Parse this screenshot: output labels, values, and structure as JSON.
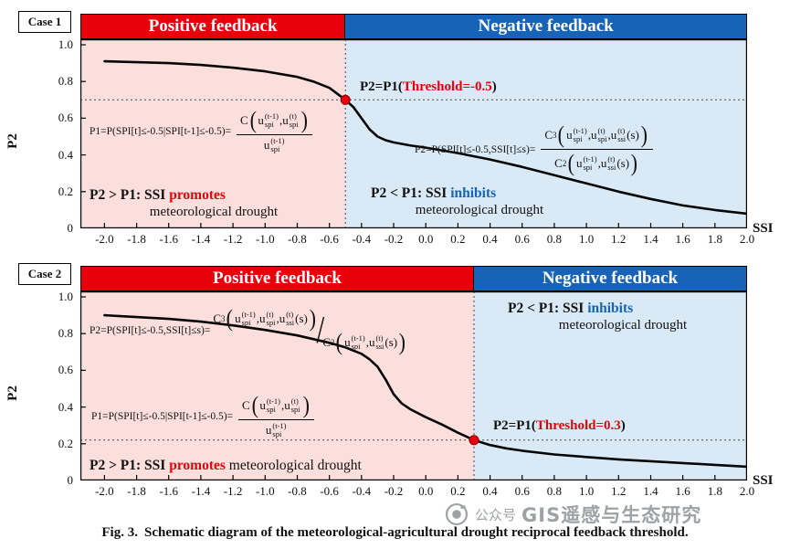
{
  "colors": {
    "positive_red": "#e8000b",
    "negative_blue": "#1663b8",
    "pink_bg": "#fbdfdd",
    "blue_bg": "#d9eaf6",
    "curve": "#060606",
    "dot": "#e8000b"
  },
  "caption": {
    "prefix": "Fig. 3.",
    "text": "Schematic diagram of the meteorological-agricultural drought reciprocal feedback threshold."
  },
  "watermark": {
    "prefix": "公众号",
    "name": "GIS遥感与生态研究"
  },
  "chart_data": [
    {
      "type": "line",
      "case_label": "Case 1",
      "headers": {
        "positive": "Positive feedback",
        "negative": "Negative feedback"
      },
      "xlabel": "SSI",
      "ylabel": "P2",
      "xlim": [
        -2.0,
        2.0
      ],
      "ylim": [
        0,
        1.0
      ],
      "x_ticks": [
        "-2.0",
        "-1.8",
        "-1.6",
        "-1.4",
        "-1.2",
        "-1.0",
        "-0.8",
        "-0.6",
        "-0.4",
        "-0.2",
        "0.0",
        "0.2",
        "0.4",
        "0.6",
        "0.8",
        "1.0",
        "1.2",
        "1.4",
        "1.6",
        "1.8",
        "2.0"
      ],
      "y_ticks": [
        "1.0",
        "0.8",
        "0.6",
        "0.4",
        "0.2",
        "0"
      ],
      "threshold": -0.5,
      "threshold_point": {
        "x": -0.5,
        "y": 0.7
      },
      "point_label": {
        "pre": "P2=P1(",
        "mid": "Threshold=-0.5",
        "post": ")"
      },
      "curve": {
        "x": [
          -2.0,
          -1.8,
          -1.6,
          -1.4,
          -1.2,
          -1.0,
          -0.8,
          -0.7,
          -0.6,
          -0.5,
          -0.45,
          -0.4,
          -0.35,
          -0.3,
          -0.25,
          -0.2,
          -0.1,
          0.0,
          0.2,
          0.4,
          0.6,
          0.8,
          1.0,
          1.2,
          1.4,
          1.6,
          1.8,
          2.0
        ],
        "y": [
          0.91,
          0.905,
          0.9,
          0.89,
          0.875,
          0.855,
          0.825,
          0.8,
          0.765,
          0.7,
          0.66,
          0.6,
          0.54,
          0.5,
          0.48,
          0.468,
          0.452,
          0.44,
          0.41,
          0.375,
          0.335,
          0.29,
          0.245,
          0.2,
          0.16,
          0.125,
          0.1,
          0.08
        ]
      },
      "annotations": {
        "promotes": {
          "lead": "P2 > P1: SSI ",
          "word": "promotes",
          "rest": "meteorological drought"
        },
        "inhibits": {
          "lead": "P2 < P1: SSI ",
          "word": "inhibits",
          "rest": "meteorological drought"
        }
      },
      "formula_p1": {
        "prefix": "P1=P(SPI[t]≤-0.5|SPI[t-1]≤-0.5)=",
        "body": [
          {
            "fr": {
              "n": [
                {
                  "t": "C"
                },
                {
                  "par": [
                    {
                      "t": "u"
                    },
                    {
                      "st": [
                        "(t-1)",
                        "spi"
                      ]
                    },
                    {
                      "t": ","
                    },
                    {
                      "t": "u"
                    },
                    {
                      "st": [
                        "(t)",
                        "spi"
                      ]
                    }
                  ]
                }
              ],
              "d": [
                {
                  "t": "u"
                },
                {
                  "st": [
                    "(t-1)",
                    "spi"
                  ]
                }
              ]
            }
          }
        ]
      },
      "formula_p2": {
        "prefix": "P2=P(SPI[t]≤-0.5,SSI[t]≤s)=",
        "body": [
          {
            "fr": {
              "n": [
                {
                  "t": "C"
                },
                {
                  "sb": "3"
                },
                {
                  "par": [
                    {
                      "t": "u"
                    },
                    {
                      "st": [
                        "(t-1)",
                        "spi"
                      ]
                    },
                    {
                      "t": ","
                    },
                    {
                      "t": "u"
                    },
                    {
                      "st": [
                        "(t)",
                        "spi"
                      ]
                    },
                    {
                      "t": ","
                    },
                    {
                      "t": "u"
                    },
                    {
                      "st": [
                        "(t)",
                        "ssi"
                      ]
                    },
                    {
                      "t": "(s)"
                    }
                  ]
                }
              ],
              "d": [
                {
                  "t": "C"
                },
                {
                  "sb": "2"
                },
                {
                  "par": [
                    {
                      "t": "u"
                    },
                    {
                      "st": [
                        "(t-1)",
                        "spi"
                      ]
                    },
                    {
                      "t": ","
                    },
                    {
                      "t": "u"
                    },
                    {
                      "st": [
                        "(t)",
                        "ssi"
                      ]
                    },
                    {
                      "t": "(s)"
                    }
                  ]
                }
              ]
            }
          }
        ]
      }
    },
    {
      "type": "line",
      "case_label": "Case 2",
      "headers": {
        "positive": "Positive feedback",
        "negative": "Negative feedback"
      },
      "xlabel": "SSI",
      "ylabel": "P2",
      "xlim": [
        -2.0,
        2.0
      ],
      "ylim": [
        0,
        1.0
      ],
      "x_ticks": [
        "-2.0",
        "-1.8",
        "-1.6",
        "-1.4",
        "-1.2",
        "-1.0",
        "-0.8",
        "-0.6",
        "-0.4",
        "-0.2",
        "0.0",
        "0.2",
        "0.4",
        "0.6",
        "0.8",
        "1.0",
        "1.2",
        "1.4",
        "1.6",
        "1.8",
        "2.0"
      ],
      "y_ticks": [
        "1.0",
        "0.8",
        "0.6",
        "0.4",
        "0.2",
        "0"
      ],
      "threshold": 0.3,
      "threshold_point": {
        "x": 0.3,
        "y": 0.22
      },
      "point_label": {
        "pre": "P2=P1(",
        "mid": "Threshold=0.3",
        "post": ")"
      },
      "curve": {
        "x": [
          -2.0,
          -1.8,
          -1.6,
          -1.4,
          -1.2,
          -1.0,
          -0.8,
          -0.6,
          -0.5,
          -0.4,
          -0.35,
          -0.3,
          -0.25,
          -0.2,
          -0.15,
          -0.1,
          0.0,
          0.1,
          0.2,
          0.3,
          0.4,
          0.5,
          0.6,
          0.8,
          1.0,
          1.2,
          1.4,
          1.6,
          1.8,
          2.0
        ],
        "y": [
          0.9,
          0.89,
          0.88,
          0.865,
          0.845,
          0.82,
          0.79,
          0.75,
          0.725,
          0.69,
          0.66,
          0.62,
          0.55,
          0.47,
          0.42,
          0.39,
          0.345,
          0.305,
          0.26,
          0.22,
          0.193,
          0.175,
          0.162,
          0.142,
          0.128,
          0.115,
          0.105,
          0.095,
          0.085,
          0.075
        ]
      },
      "annotations": {
        "promotes": {
          "lead": "P2 > P1: SSI ",
          "word": "promotes",
          "rest": " meteorological drought"
        },
        "inhibits": {
          "lead": "P2 < P1: SSI ",
          "word": "inhibits",
          "rest": "meteorological drought"
        }
      },
      "formula_p1": {
        "prefix": "P1=P(SPI[t]≤-0.5|SPI[t-1]≤-0.5)=",
        "body": [
          {
            "fr": {
              "n": [
                {
                  "t": "C"
                },
                {
                  "par": [
                    {
                      "t": "u"
                    },
                    {
                      "st": [
                        "(t-1)",
                        "spi"
                      ]
                    },
                    {
                      "t": ","
                    },
                    {
                      "t": "u"
                    },
                    {
                      "st": [
                        "(t)",
                        "spi"
                      ]
                    }
                  ]
                }
              ],
              "d": [
                {
                  "t": "u"
                },
                {
                  "st": [
                    "(t-1)",
                    "spi"
                  ]
                }
              ]
            }
          }
        ]
      },
      "formula_p2": {
        "prefix": "P2=P(SPI[t]≤-0.5,SSI[t]≤s)=",
        "body": [
          {
            "sf": {
              "n": [
                {
                  "t": "C"
                },
                {
                  "sb": "3"
                },
                {
                  "par": [
                    {
                      "t": "u"
                    },
                    {
                      "st": [
                        "(t-1)",
                        "spi"
                      ]
                    },
                    {
                      "t": ","
                    },
                    {
                      "t": "u"
                    },
                    {
                      "st": [
                        "(t)",
                        "spi"
                      ]
                    },
                    {
                      "t": ","
                    },
                    {
                      "t": "u"
                    },
                    {
                      "st": [
                        "(t)",
                        "ssi"
                      ]
                    },
                    {
                      "t": "(s)"
                    }
                  ]
                }
              ],
              "d": [
                {
                  "t": "C"
                },
                {
                  "sb": "2"
                },
                {
                  "par": [
                    {
                      "t": "u"
                    },
                    {
                      "st": [
                        "(t-1)",
                        "spi"
                      ]
                    },
                    {
                      "t": ","
                    },
                    {
                      "t": "u"
                    },
                    {
                      "st": [
                        "(t)",
                        "ssi"
                      ]
                    },
                    {
                      "t": "(s)"
                    }
                  ]
                }
              ]
            }
          }
        ]
      }
    }
  ]
}
